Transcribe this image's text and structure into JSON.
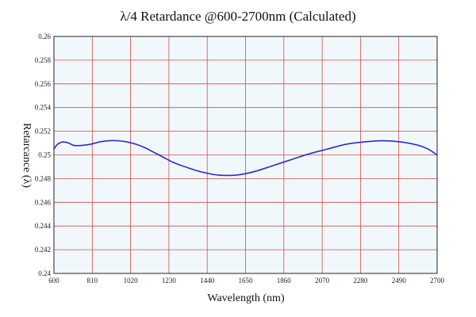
{
  "chart_data": {
    "type": "line",
    "title": "λ/4 Retardance @600-2700nm (Calculated)",
    "xlabel": "Wavelength (nm)",
    "ylabel": "Retarcance (λ)",
    "xlim": [
      600,
      2700
    ],
    "ylim": [
      0.24,
      0.26
    ],
    "x_ticks": [
      600,
      810,
      1020,
      1230,
      1440,
      1650,
      1860,
      2070,
      2280,
      2490,
      2700
    ],
    "y_ticks": [
      0.24,
      0.242,
      0.244,
      0.246,
      0.248,
      0.25,
      0.252,
      0.254,
      0.256,
      0.258,
      0.26
    ],
    "y_tick_labels": [
      "0.24",
      "0.242",
      "0.244",
      "0.246",
      "0.248",
      "0.25",
      "0.252",
      "0.254",
      "0.256",
      "0.258",
      "0.26"
    ],
    "grid": true,
    "series": [
      {
        "color": "#2b2bd6",
        "x": [
          600,
          620,
          650,
          680,
          710,
          750,
          800,
          850,
          900,
          950,
          1000,
          1050,
          1100,
          1150,
          1200,
          1250,
          1300,
          1400,
          1500,
          1600,
          1700,
          1800,
          1900,
          2000,
          2100,
          2200,
          2300,
          2400,
          2500,
          2600,
          2650,
          2700
        ],
        "y": [
          0.2505,
          0.2509,
          0.2511,
          0.251,
          0.2508,
          0.2508,
          0.2509,
          0.2511,
          0.2512,
          0.2512,
          0.2511,
          0.2509,
          0.2506,
          0.2502,
          0.2498,
          0.2494,
          0.2491,
          0.2486,
          0.2483,
          0.2483,
          0.2486,
          0.2491,
          0.2496,
          0.2501,
          0.2505,
          0.2509,
          0.2511,
          0.2512,
          0.2511,
          0.2508,
          0.2505,
          0.25
        ]
      }
    ]
  },
  "colors": {
    "plot_background": "#f1f8fc",
    "grid": "#d64a4a",
    "line": "#2b2bd6",
    "axis": "#222222"
  }
}
